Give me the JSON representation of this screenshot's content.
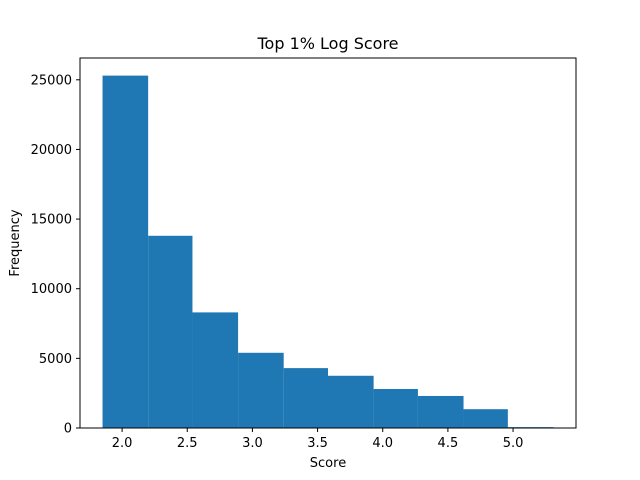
{
  "chart_data": {
    "type": "bar",
    "title": "Top 1% Log Score",
    "xlabel": "Score",
    "ylabel": "Frequency",
    "bar_color": "#1f77b4",
    "bins": [
      {
        "x0": 1.85,
        "x1": 2.2,
        "count": 25300
      },
      {
        "x0": 2.2,
        "x1": 2.54,
        "count": 13800
      },
      {
        "x0": 2.54,
        "x1": 2.89,
        "count": 8300
      },
      {
        "x0": 2.89,
        "x1": 3.24,
        "count": 5400
      },
      {
        "x0": 3.24,
        "x1": 3.58,
        "count": 4300
      },
      {
        "x0": 3.58,
        "x1": 3.93,
        "count": 3750
      },
      {
        "x0": 3.93,
        "x1": 4.27,
        "count": 2800
      },
      {
        "x0": 4.27,
        "x1": 4.62,
        "count": 2300
      },
      {
        "x0": 4.62,
        "x1": 4.96,
        "count": 1350
      },
      {
        "x0": 4.96,
        "x1": 5.31,
        "count": 60
      }
    ],
    "xlim": [
      1.677,
      5.483
    ],
    "ylim": [
      0,
      26565
    ],
    "xticks": [
      2.0,
      2.5,
      3.0,
      3.5,
      4.0,
      4.5,
      5.0
    ],
    "xtick_labels": [
      "2.0",
      "2.5",
      "3.0",
      "3.5",
      "4.0",
      "4.5",
      "5.0"
    ],
    "yticks": [
      0,
      5000,
      10000,
      15000,
      20000,
      25000
    ],
    "ytick_labels": [
      "0",
      "5000",
      "10000",
      "15000",
      "20000",
      "25000"
    ],
    "grid": false,
    "legend": "none"
  }
}
